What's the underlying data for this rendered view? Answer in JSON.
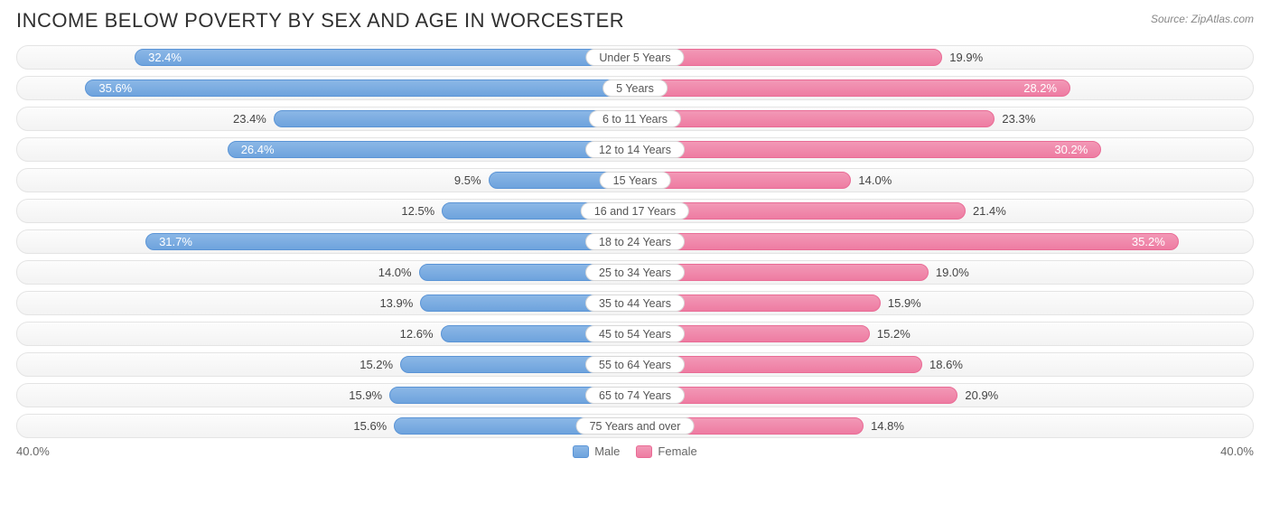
{
  "title": "INCOME BELOW POVERTY BY SEX AND AGE IN WORCESTER",
  "source": "Source: ZipAtlas.com",
  "axis_max": 40.0,
  "axis_max_label": "40.0%",
  "legend": {
    "male": "Male",
    "female": "Female"
  },
  "colors": {
    "male_fill_top": "#8bb7e6",
    "male_fill_bottom": "#6ea3dd",
    "male_border": "#5a94d6",
    "female_fill_top": "#f298b6",
    "female_fill_bottom": "#ee7ca2",
    "female_border": "#e96b95",
    "row_bg_top": "#fcfcfc",
    "row_bg_bottom": "#f3f3f3",
    "row_border": "#e4e4e4",
    "title_color": "#303030",
    "label_color": "#555555",
    "value_color": "#444444",
    "value_color_inside": "#ffffff",
    "source_color": "#888888"
  },
  "typography": {
    "title_fontsize": 22,
    "category_fontsize": 12.5,
    "value_fontsize": 13,
    "source_fontsize": 12
  },
  "inside_threshold": 25.0,
  "rows": [
    {
      "category": "Under 5 Years",
      "male": 32.4,
      "female": 19.9
    },
    {
      "category": "5 Years",
      "male": 35.6,
      "female": 28.2
    },
    {
      "category": "6 to 11 Years",
      "male": 23.4,
      "female": 23.3
    },
    {
      "category": "12 to 14 Years",
      "male": 26.4,
      "female": 30.2
    },
    {
      "category": "15 Years",
      "male": 9.5,
      "female": 14.0
    },
    {
      "category": "16 and 17 Years",
      "male": 12.5,
      "female": 21.4
    },
    {
      "category": "18 to 24 Years",
      "male": 31.7,
      "female": 35.2
    },
    {
      "category": "25 to 34 Years",
      "male": 14.0,
      "female": 19.0
    },
    {
      "category": "35 to 44 Years",
      "male": 13.9,
      "female": 15.9
    },
    {
      "category": "45 to 54 Years",
      "male": 12.6,
      "female": 15.2
    },
    {
      "category": "55 to 64 Years",
      "male": 15.2,
      "female": 18.6
    },
    {
      "category": "65 to 74 Years",
      "male": 15.9,
      "female": 20.9
    },
    {
      "category": "75 Years and over",
      "male": 15.6,
      "female": 14.8
    }
  ]
}
